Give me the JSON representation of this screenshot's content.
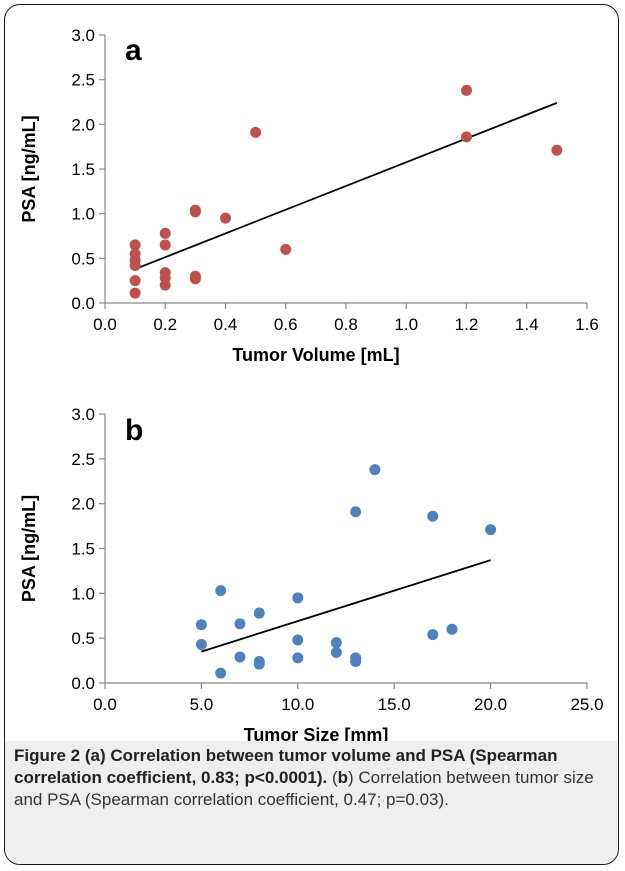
{
  "chart_data": [
    {
      "type": "scatter",
      "panel_label": "a",
      "xlabel": "Tumor Volume [mL]",
      "ylabel": "PSA [ng/mL]",
      "xlim": [
        0.0,
        1.6
      ],
      "ylim": [
        0.0,
        3.0
      ],
      "x_ticks": [
        "0.0",
        "0.2",
        "0.4",
        "0.6",
        "0.8",
        "1.0",
        "1.2",
        "1.4",
        "1.6"
      ],
      "y_ticks": [
        "0.0",
        "0.5",
        "1.0",
        "1.5",
        "2.0",
        "2.5",
        "3.0"
      ],
      "point_color": "#c0504d",
      "grid": false,
      "points": [
        [
          0.1,
          0.65
        ],
        [
          0.1,
          0.55
        ],
        [
          0.1,
          0.48
        ],
        [
          0.1,
          0.42
        ],
        [
          0.1,
          0.25
        ],
        [
          0.1,
          0.11
        ],
        [
          0.2,
          0.78
        ],
        [
          0.2,
          0.65
        ],
        [
          0.2,
          0.34
        ],
        [
          0.2,
          0.28
        ],
        [
          0.2,
          0.2
        ],
        [
          0.3,
          1.04
        ],
        [
          0.3,
          1.02
        ],
        [
          0.3,
          0.3
        ],
        [
          0.3,
          0.27
        ],
        [
          0.4,
          0.95
        ],
        [
          0.5,
          1.91
        ],
        [
          0.6,
          0.6
        ],
        [
          1.2,
          2.38
        ],
        [
          1.2,
          1.86
        ],
        [
          1.5,
          1.71
        ]
      ],
      "trendline": [
        [
          0.1,
          0.38
        ],
        [
          1.5,
          2.24
        ]
      ]
    },
    {
      "type": "scatter",
      "panel_label": "b",
      "xlabel": "Tumor Size [mm]",
      "ylabel": "PSA [ng/mL]",
      "xlim": [
        0.0,
        25.0
      ],
      "ylim": [
        0.0,
        3.0
      ],
      "x_ticks": [
        "0.0",
        "5.0",
        "10.0",
        "15.0",
        "20.0",
        "25.0"
      ],
      "y_ticks": [
        "0.0",
        "0.5",
        "1.0",
        "1.5",
        "2.0",
        "2.5",
        "3.0"
      ],
      "point_color": "#4f81bd",
      "grid": false,
      "points": [
        [
          5,
          0.65
        ],
        [
          5,
          0.43
        ],
        [
          6,
          1.03
        ],
        [
          6,
          0.11
        ],
        [
          7,
          0.66
        ],
        [
          7,
          0.29
        ],
        [
          8,
          0.78
        ],
        [
          8,
          0.24
        ],
        [
          8,
          0.21
        ],
        [
          10,
          0.95
        ],
        [
          10,
          0.48
        ],
        [
          10,
          0.28
        ],
        [
          12,
          0.45
        ],
        [
          12,
          0.34
        ],
        [
          13,
          1.91
        ],
        [
          13,
          0.28
        ],
        [
          13,
          0.24
        ],
        [
          14,
          2.38
        ],
        [
          17,
          1.86
        ],
        [
          17,
          0.54
        ],
        [
          18,
          0.6
        ],
        [
          20,
          1.71
        ]
      ],
      "trendline": [
        [
          5,
          0.35
        ],
        [
          20,
          1.37
        ]
      ]
    }
  ],
  "caption": {
    "figure_label": "Figure 2",
    "part_a": "(a) Correlation between tumor volume and PSA (Spearman correlation coefficient, 0.83; p<0.0001).",
    "part_b_open": "(",
    "part_b_letter": "b",
    "part_b_text": ") Correlation between tumor size and PSA (Spearman correlation coefficient, 0.47; p=0.03)."
  }
}
